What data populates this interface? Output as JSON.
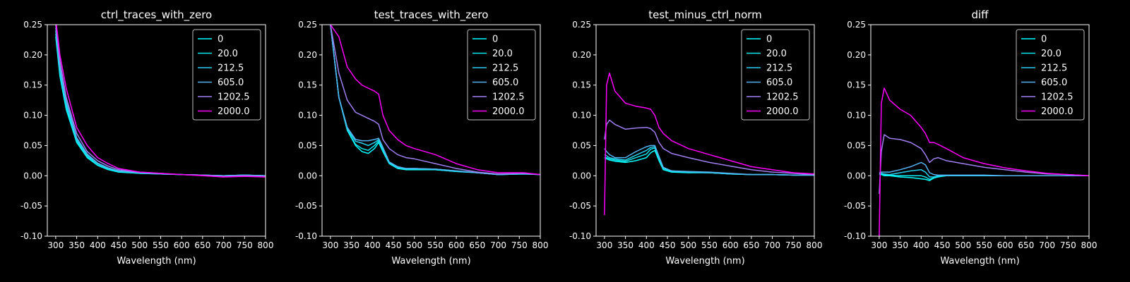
{
  "figure": {
    "background": "#000000",
    "foreground": "#ffffff"
  },
  "legend_entries": [
    {
      "label": "0",
      "color": "#00ffff"
    },
    {
      "label": "20.0",
      "color": "#0ae8ef"
    },
    {
      "label": "212.5",
      "color": "#27d1ee"
    },
    {
      "label": "605.0",
      "color": "#55b2f2"
    },
    {
      "label": "1202.5",
      "color": "#a07ff2"
    },
    {
      "label": "2000.0",
      "color": "#ff00ff"
    }
  ],
  "chart_data": [
    {
      "type": "line",
      "title": "ctrl_traces_with_zero",
      "xlabel": "Wavelength (nm)",
      "ylabel": "",
      "xlim": [
        280,
        800
      ],
      "ylim": [
        -0.1,
        0.25
      ],
      "xticks": [
        300,
        350,
        400,
        450,
        500,
        550,
        600,
        650,
        700,
        750,
        800
      ],
      "yticks": [
        -0.1,
        -0.05,
        0.0,
        0.05,
        0.1,
        0.15,
        0.2,
        0.25
      ],
      "legend_position": "top-right",
      "grid": false,
      "x": [
        300,
        310,
        325,
        350,
        375,
        400,
        425,
        450,
        500,
        550,
        600,
        650,
        700,
        750,
        800
      ],
      "series": [
        {
          "name": "0",
          "values": [
            0.23,
            0.165,
            0.11,
            0.055,
            0.03,
            0.017,
            0.01,
            0.006,
            0.004,
            0.003,
            0.002,
            0.001,
            0.0,
            0.001,
            0.0
          ]
        },
        {
          "name": "20.0",
          "values": [
            0.235,
            0.17,
            0.115,
            0.058,
            0.032,
            0.018,
            0.011,
            0.007,
            0.004,
            0.003,
            0.002,
            0.001,
            0.0,
            0.001,
            0.0
          ]
        },
        {
          "name": "212.5",
          "values": [
            0.24,
            0.175,
            0.12,
            0.06,
            0.034,
            0.02,
            0.012,
            0.008,
            0.005,
            0.003,
            0.002,
            0.001,
            0.0,
            0.001,
            0.0
          ]
        },
        {
          "name": "605.0",
          "values": [
            0.245,
            0.18,
            0.125,
            0.063,
            0.036,
            0.021,
            0.013,
            0.008,
            0.005,
            0.003,
            0.002,
            0.001,
            0.0,
            0.001,
            0.0
          ]
        },
        {
          "name": "1202.5",
          "values": [
            0.25,
            0.19,
            0.13,
            0.07,
            0.04,
            0.025,
            0.016,
            0.01,
            0.006,
            0.004,
            0.002,
            0.001,
            -0.001,
            0.0,
            -0.001
          ]
        },
        {
          "name": "2000.0",
          "values": [
            0.26,
            0.2,
            0.145,
            0.08,
            0.05,
            0.03,
            0.02,
            0.012,
            0.006,
            0.004,
            0.002,
            0.0,
            -0.002,
            -0.001,
            -0.002
          ]
        }
      ]
    },
    {
      "type": "line",
      "title": "test_traces_with_zero",
      "xlabel": "Wavelength (nm)",
      "ylabel": "",
      "xlim": [
        280,
        800
      ],
      "ylim": [
        -0.1,
        0.25
      ],
      "xticks": [
        300,
        350,
        400,
        450,
        500,
        550,
        600,
        650,
        700,
        750,
        800
      ],
      "yticks": [
        -0.1,
        -0.05,
        0.0,
        0.05,
        0.1,
        0.15,
        0.2,
        0.25
      ],
      "legend_position": "top-right",
      "grid": false,
      "x": [
        300,
        320,
        340,
        360,
        375,
        390,
        405,
        415,
        425,
        440,
        460,
        480,
        500,
        550,
        600,
        650,
        700,
        760,
        800
      ],
      "series": [
        {
          "name": "0",
          "values": [
            0.25,
            0.13,
            0.075,
            0.05,
            0.04,
            0.037,
            0.045,
            0.055,
            0.04,
            0.02,
            0.012,
            0.01,
            0.01,
            0.01,
            0.007,
            0.005,
            0.002,
            0.003,
            0.002
          ]
        },
        {
          "name": "20.0",
          "values": [
            0.25,
            0.13,
            0.076,
            0.052,
            0.045,
            0.042,
            0.05,
            0.058,
            0.042,
            0.021,
            0.013,
            0.011,
            0.011,
            0.01,
            0.007,
            0.005,
            0.002,
            0.003,
            0.002
          ]
        },
        {
          "name": "212.5",
          "values": [
            0.25,
            0.13,
            0.078,
            0.057,
            0.054,
            0.05,
            0.055,
            0.06,
            0.045,
            0.022,
            0.014,
            0.012,
            0.012,
            0.011,
            0.008,
            0.005,
            0.002,
            0.003,
            0.002
          ]
        },
        {
          "name": "605.0",
          "values": [
            0.25,
            0.13,
            0.08,
            0.06,
            0.058,
            0.058,
            0.06,
            0.062,
            0.047,
            0.023,
            0.015,
            0.012,
            0.012,
            0.011,
            0.008,
            0.005,
            0.002,
            0.004,
            0.002
          ]
        },
        {
          "name": "1202.5",
          "values": [
            0.25,
            0.17,
            0.125,
            0.105,
            0.1,
            0.095,
            0.09,
            0.085,
            0.06,
            0.045,
            0.035,
            0.03,
            0.028,
            0.02,
            0.012,
            0.006,
            0.003,
            0.004,
            0.002
          ]
        },
        {
          "name": "2000.0",
          "values": [
            0.25,
            0.23,
            0.18,
            0.16,
            0.15,
            0.145,
            0.14,
            0.135,
            0.1,
            0.075,
            0.06,
            0.05,
            0.045,
            0.035,
            0.02,
            0.01,
            0.005,
            0.005,
            0.002
          ]
        }
      ]
    },
    {
      "type": "line",
      "title": "test_minus_ctrl_norm",
      "xlabel": "Wavelength (nm)",
      "ylabel": "",
      "xlim": [
        280,
        800
      ],
      "ylim": [
        -0.1,
        0.25
      ],
      "xticks": [
        300,
        350,
        400,
        450,
        500,
        550,
        600,
        650,
        700,
        750,
        800
      ],
      "yticks": [
        -0.1,
        -0.05,
        0.0,
        0.05,
        0.1,
        0.15,
        0.2,
        0.25
      ],
      "legend_position": "top-right",
      "grid": false,
      "x": [
        300,
        305,
        312,
        325,
        350,
        375,
        400,
        410,
        420,
        430,
        440,
        460,
        500,
        550,
        600,
        650,
        700,
        750,
        800
      ],
      "series": [
        {
          "name": "0",
          "values": [
            0.03,
            0.028,
            0.026,
            0.024,
            0.022,
            0.025,
            0.03,
            0.038,
            0.042,
            0.025,
            0.01,
            0.006,
            0.005,
            0.005,
            0.003,
            0.002,
            0.002,
            0.001,
            0.001
          ]
        },
        {
          "name": "20.0",
          "values": [
            0.03,
            0.03,
            0.028,
            0.026,
            0.024,
            0.03,
            0.036,
            0.044,
            0.046,
            0.028,
            0.012,
            0.007,
            0.006,
            0.005,
            0.003,
            0.002,
            0.002,
            0.001,
            0.001
          ]
        },
        {
          "name": "212.5",
          "values": [
            0.035,
            0.033,
            0.03,
            0.028,
            0.026,
            0.034,
            0.042,
            0.047,
            0.048,
            0.03,
            0.013,
            0.008,
            0.006,
            0.005,
            0.003,
            0.002,
            0.002,
            0.001,
            0.001
          ]
        },
        {
          "name": "605.0",
          "values": [
            0.045,
            0.04,
            0.035,
            0.03,
            0.03,
            0.04,
            0.048,
            0.05,
            0.05,
            0.032,
            0.014,
            0.008,
            0.007,
            0.006,
            0.004,
            0.002,
            0.002,
            0.001,
            0.001
          ]
        },
        {
          "name": "1202.5",
          "values": [
            0.06,
            0.085,
            0.092,
            0.085,
            0.077,
            0.079,
            0.08,
            0.078,
            0.072,
            0.055,
            0.045,
            0.037,
            0.03,
            0.022,
            0.016,
            0.01,
            0.006,
            0.004,
            0.002
          ]
        },
        {
          "name": "2000.0",
          "values": [
            -0.065,
            0.15,
            0.17,
            0.14,
            0.12,
            0.115,
            0.112,
            0.11,
            0.1,
            0.08,
            0.07,
            0.058,
            0.045,
            0.035,
            0.025,
            0.015,
            0.01,
            0.005,
            0.003
          ]
        }
      ]
    },
    {
      "type": "line",
      "title": "diff",
      "xlabel": "Wavelength (nm)",
      "ylabel": "",
      "xlim": [
        280,
        800
      ],
      "ylim": [
        -0.1,
        0.25
      ],
      "xticks": [
        300,
        350,
        400,
        450,
        500,
        550,
        600,
        650,
        700,
        750,
        800
      ],
      "yticks": [
        -0.1,
        -0.05,
        0.0,
        0.05,
        0.1,
        0.15,
        0.2,
        0.25
      ],
      "legend_position": "top-right",
      "grid": false,
      "x": [
        300,
        305,
        312,
        325,
        350,
        375,
        400,
        410,
        420,
        430,
        440,
        460,
        500,
        550,
        600,
        650,
        700,
        750,
        800
      ],
      "series": [
        {
          "name": "0",
          "values": [
            0.002,
            0.002,
            0.0,
            0.0,
            -0.002,
            -0.003,
            -0.005,
            -0.006,
            -0.008,
            -0.004,
            -0.002,
            0.0,
            0.0,
            0.0,
            0.0,
            0.0,
            0.0,
            0.0,
            0.0
          ]
        },
        {
          "name": "20.0",
          "values": [
            0.003,
            0.003,
            0.002,
            0.001,
            0.0,
            0.0,
            0.0,
            -0.002,
            -0.006,
            -0.003,
            -0.001,
            0.0,
            0.0,
            0.0,
            0.0,
            0.0,
            0.0,
            0.0,
            0.0
          ]
        },
        {
          "name": "212.5",
          "values": [
            0.004,
            0.004,
            0.003,
            0.002,
            0.005,
            0.008,
            0.01,
            0.006,
            -0.002,
            -0.002,
            0.0,
            0.0,
            0.0,
            0.0,
            0.0,
            0.0,
            0.0,
            0.0,
            0.0
          ]
        },
        {
          "name": "605.0",
          "values": [
            0.005,
            0.006,
            0.006,
            0.006,
            0.01,
            0.015,
            0.022,
            0.018,
            0.005,
            0.002,
            0.001,
            0.001,
            0.001,
            0.001,
            0.0,
            0.0,
            0.0,
            0.0,
            0.0
          ]
        },
        {
          "name": "1202.5",
          "values": [
            -0.03,
            0.04,
            0.068,
            0.062,
            0.06,
            0.055,
            0.045,
            0.035,
            0.022,
            0.028,
            0.03,
            0.025,
            0.02,
            0.014,
            0.01,
            0.006,
            0.003,
            0.002,
            0.0
          ]
        },
        {
          "name": "2000.0",
          "values": [
            -0.1,
            0.12,
            0.145,
            0.125,
            0.11,
            0.1,
            0.08,
            0.07,
            0.055,
            0.055,
            0.052,
            0.045,
            0.03,
            0.02,
            0.013,
            0.008,
            0.004,
            0.002,
            0.0
          ]
        }
      ]
    }
  ]
}
